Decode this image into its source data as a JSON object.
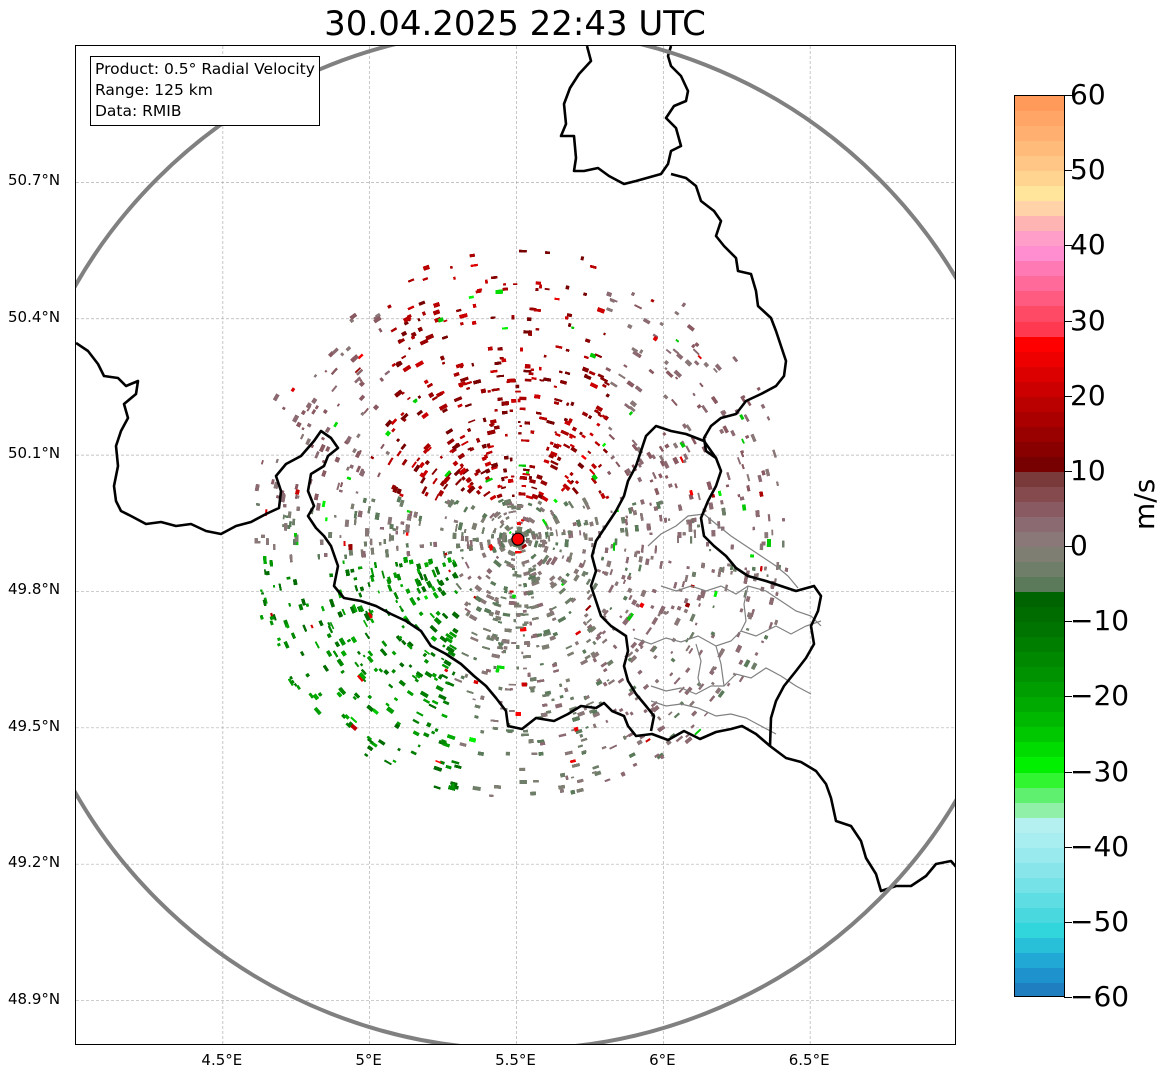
{
  "title": "30.04.2025 22:43 UTC",
  "info_box": {
    "product": "Product: 0.5° Radial Velocity",
    "range": "Range: 125 km",
    "data": "Data: RMIB"
  },
  "map": {
    "lon_range": [
      4.0,
      7.0
    ],
    "lat_range": [
      48.8,
      51.0
    ],
    "lat_ticks": [
      {
        "value": 50.7,
        "label": "50.7°N"
      },
      {
        "value": 50.4,
        "label": "50.4°N"
      },
      {
        "value": 50.1,
        "label": "50.1°N"
      },
      {
        "value": 49.8,
        "label": "49.8°N"
      },
      {
        "value": 49.5,
        "label": "49.5°N"
      },
      {
        "value": 49.2,
        "label": "49.2°N"
      },
      {
        "value": 48.9,
        "label": "48.9°N"
      }
    ],
    "lon_ticks": [
      {
        "value": 4.5,
        "label": "4.5°E"
      },
      {
        "value": 5.0,
        "label": "5°E"
      },
      {
        "value": 5.5,
        "label": "5.5°E"
      },
      {
        "value": 6.0,
        "label": "6°E"
      },
      {
        "value": 6.5,
        "label": "6.5°E"
      }
    ],
    "radar_site": {
      "lon": 5.505,
      "lat": 49.915
    },
    "range_circle_km": 125,
    "colors": {
      "range_ring": "#808080",
      "border": "#000000",
      "admin_border": "#808080",
      "grid": "#b0b0b0",
      "site_marker": "#ff0000"
    }
  },
  "colorbar": {
    "unit": "m/s",
    "min": -60,
    "max": 60,
    "ticks": [
      {
        "value": 60,
        "label": "60"
      },
      {
        "value": 50,
        "label": "50"
      },
      {
        "value": 40,
        "label": "40"
      },
      {
        "value": 30,
        "label": "30"
      },
      {
        "value": 20,
        "label": "20"
      },
      {
        "value": 10,
        "label": "10"
      },
      {
        "value": 0,
        "label": "0"
      },
      {
        "value": -10,
        "label": "−10"
      },
      {
        "value": -20,
        "label": "−20"
      },
      {
        "value": -30,
        "label": "−30"
      },
      {
        "value": -40,
        "label": "−40"
      },
      {
        "value": -50,
        "label": "−50"
      },
      {
        "value": -60,
        "label": "−60"
      }
    ],
    "stops": [
      {
        "from": 58,
        "to": 60,
        "color": "#ff9a5a"
      },
      {
        "from": 56,
        "to": 58,
        "color": "#ffa566"
      },
      {
        "from": 54,
        "to": 56,
        "color": "#ffb070"
      },
      {
        "from": 52,
        "to": 54,
        "color": "#ffbb7a"
      },
      {
        "from": 50,
        "to": 52,
        "color": "#ffc685"
      },
      {
        "from": 48,
        "to": 50,
        "color": "#ffd490"
      },
      {
        "from": 46,
        "to": 48,
        "color": "#ffe59c"
      },
      {
        "from": 44,
        "to": 46,
        "color": "#ffd2a8"
      },
      {
        "from": 42,
        "to": 44,
        "color": "#ffb4b4"
      },
      {
        "from": 40,
        "to": 42,
        "color": "#ff9ec8"
      },
      {
        "from": 38,
        "to": 40,
        "color": "#ff8ed0"
      },
      {
        "from": 36,
        "to": 38,
        "color": "#ff7ab4"
      },
      {
        "from": 34,
        "to": 36,
        "color": "#ff6a9a"
      },
      {
        "from": 32,
        "to": 34,
        "color": "#ff5a80"
      },
      {
        "from": 30,
        "to": 32,
        "color": "#ff4a66"
      },
      {
        "from": 28,
        "to": 30,
        "color": "#ff3a50"
      },
      {
        "from": 26,
        "to": 28,
        "color": "#ff0000"
      },
      {
        "from": 24,
        "to": 26,
        "color": "#ee0000"
      },
      {
        "from": 22,
        "to": 24,
        "color": "#dd0000"
      },
      {
        "from": 20,
        "to": 22,
        "color": "#cc0000"
      },
      {
        "from": 18,
        "to": 20,
        "color": "#bb0000"
      },
      {
        "from": 16,
        "to": 18,
        "color": "#aa0000"
      },
      {
        "from": 14,
        "to": 16,
        "color": "#990000"
      },
      {
        "from": 12,
        "to": 14,
        "color": "#880000"
      },
      {
        "from": 10,
        "to": 12,
        "color": "#770000"
      },
      {
        "from": 8,
        "to": 10,
        "color": "#7a3a3a"
      },
      {
        "from": 6,
        "to": 8,
        "color": "#844a4e"
      },
      {
        "from": 4,
        "to": 6,
        "color": "#8a5a62"
      },
      {
        "from": 2,
        "to": 4,
        "color": "#8c6a72"
      },
      {
        "from": 0,
        "to": 2,
        "color": "#8a7878"
      },
      {
        "from": -2,
        "to": 0,
        "color": "#7e7e72"
      },
      {
        "from": -4,
        "to": -2,
        "color": "#6e7e68"
      },
      {
        "from": -6,
        "to": -4,
        "color": "#5a7a5a"
      },
      {
        "from": -8,
        "to": -6,
        "color": "#006400"
      },
      {
        "from": -10,
        "to": -8,
        "color": "#006c00"
      },
      {
        "from": -12,
        "to": -10,
        "color": "#007400"
      },
      {
        "from": -14,
        "to": -12,
        "color": "#007e00"
      },
      {
        "from": -16,
        "to": -14,
        "color": "#008800"
      },
      {
        "from": -18,
        "to": -16,
        "color": "#009200"
      },
      {
        "from": -20,
        "to": -18,
        "color": "#009e00"
      },
      {
        "from": -22,
        "to": -20,
        "color": "#00aa00"
      },
      {
        "from": -24,
        "to": -22,
        "color": "#00b800"
      },
      {
        "from": -26,
        "to": -24,
        "color": "#00c800"
      },
      {
        "from": -28,
        "to": -26,
        "color": "#00dc00"
      },
      {
        "from": -30,
        "to": -28,
        "color": "#00f000"
      },
      {
        "from": -32,
        "to": -30,
        "color": "#30f530"
      },
      {
        "from": -34,
        "to": -32,
        "color": "#60f070"
      },
      {
        "from": -36,
        "to": -34,
        "color": "#90f0a8"
      },
      {
        "from": -38,
        "to": -36,
        "color": "#b4f0f0"
      },
      {
        "from": -40,
        "to": -38,
        "color": "#a8eef0"
      },
      {
        "from": -42,
        "to": -40,
        "color": "#98eaee"
      },
      {
        "from": -44,
        "to": -42,
        "color": "#88e6ea"
      },
      {
        "from": -46,
        "to": -44,
        "color": "#74e2e6"
      },
      {
        "from": -48,
        "to": -46,
        "color": "#5edde2"
      },
      {
        "from": -50,
        "to": -48,
        "color": "#48d8de"
      },
      {
        "from": -52,
        "to": -50,
        "color": "#30d6dc"
      },
      {
        "from": -54,
        "to": -52,
        "color": "#28c0d8"
      },
      {
        "from": -56,
        "to": -54,
        "color": "#22a8d4"
      },
      {
        "from": -58,
        "to": -56,
        "color": "#1e92cc"
      },
      {
        "from": -60,
        "to": -58,
        "color": "#1e7ec0"
      }
    ]
  }
}
